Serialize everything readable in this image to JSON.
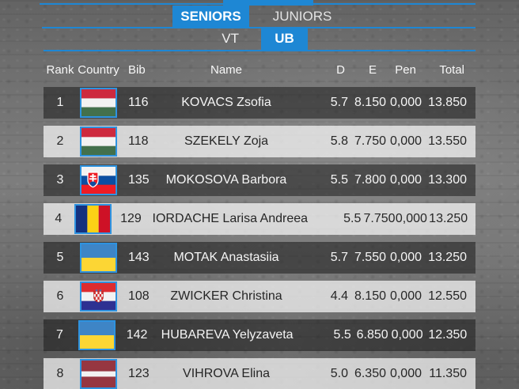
{
  "accent_color": "#1e87d4",
  "nav": {
    "category_tabs": {
      "seniors_label": "SENIORS",
      "juniors_label": "JUNIORS",
      "active": "SENIORS"
    },
    "apparatus_tabs": {
      "vt_label": "VT",
      "ub_label": "UB",
      "active": "UB"
    }
  },
  "table": {
    "headers": {
      "rank": "Rank",
      "country": "Country",
      "bib": "Bib",
      "name": "Name",
      "d": "D",
      "e": "E",
      "pen": "Pen",
      "total": "Total"
    },
    "rows": [
      {
        "rank": "1",
        "flag": "hungary",
        "bib": "116",
        "name": "KOVACS Zsofia",
        "d": "5.7",
        "e": "8.150",
        "pen": "0,000",
        "total": "13.850"
      },
      {
        "rank": "2",
        "flag": "hungary",
        "bib": "118",
        "name": "SZEKELY Zoja",
        "d": "5.8",
        "e": "7.750",
        "pen": "0,000",
        "total": "13.550"
      },
      {
        "rank": "3",
        "flag": "slovakia",
        "bib": "135",
        "name": "MOKOSOVA Barbora",
        "d": "5.5",
        "e": "7.800",
        "pen": "0,000",
        "total": "13.300"
      },
      {
        "rank": "4",
        "flag": "romania",
        "bib": "129",
        "name": "IORDACHE Larisa Andreea",
        "d": "5.5",
        "e": "7.750",
        "pen": "0,000",
        "total": "13.250"
      },
      {
        "rank": "5",
        "flag": "ukraine",
        "bib": "143",
        "name": "MOTAK Anastasiia",
        "d": "5.7",
        "e": "7.550",
        "pen": "0,000",
        "total": "13.250"
      },
      {
        "rank": "6",
        "flag": "croatia",
        "bib": "108",
        "name": "ZWICKER Christina",
        "d": "4.4",
        "e": "8.150",
        "pen": "0,000",
        "total": "12.550"
      },
      {
        "rank": "7",
        "flag": "ukraine",
        "bib": "142",
        "name": "HUBAREVA Yelyzaveta",
        "d": "5.5",
        "e": "6.850",
        "pen": "0,000",
        "total": "12.350"
      },
      {
        "rank": "8",
        "flag": "latvia",
        "bib": "123",
        "name": "VIHROVA Elina",
        "d": "5.0",
        "e": "6.350",
        "pen": "0,000",
        "total": "11.350"
      }
    ]
  }
}
